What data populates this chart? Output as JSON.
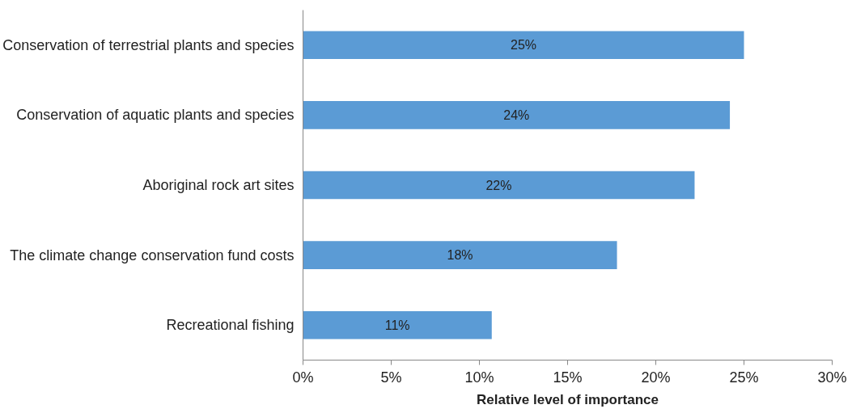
{
  "chart_data": {
    "type": "bar",
    "orientation": "horizontal",
    "xlabel": "Relative level of importance",
    "categories": [
      "Conservation of terrestrial plants and species",
      "Conservation of aquatic plants and species",
      "Aboriginal rock art sites",
      "The climate change conservation fund costs",
      "Recreational fishing"
    ],
    "values": [
      25,
      24.2,
      22.2,
      17.8,
      10.7
    ],
    "value_labels": [
      "25%",
      "24%",
      "22%",
      "18%",
      "11%"
    ],
    "color": "#5b9bd5",
    "xlim": [
      0,
      30
    ],
    "xticks": [
      {
        "value": 0,
        "label": "0%"
      },
      {
        "value": 5,
        "label": "5%"
      },
      {
        "value": 10,
        "label": "10%"
      },
      {
        "value": 15,
        "label": "15%"
      },
      {
        "value": 20,
        "label": "20%"
      },
      {
        "value": 25,
        "label": "25%"
      },
      {
        "value": 30,
        "label": "30%"
      }
    ],
    "grid": false
  }
}
